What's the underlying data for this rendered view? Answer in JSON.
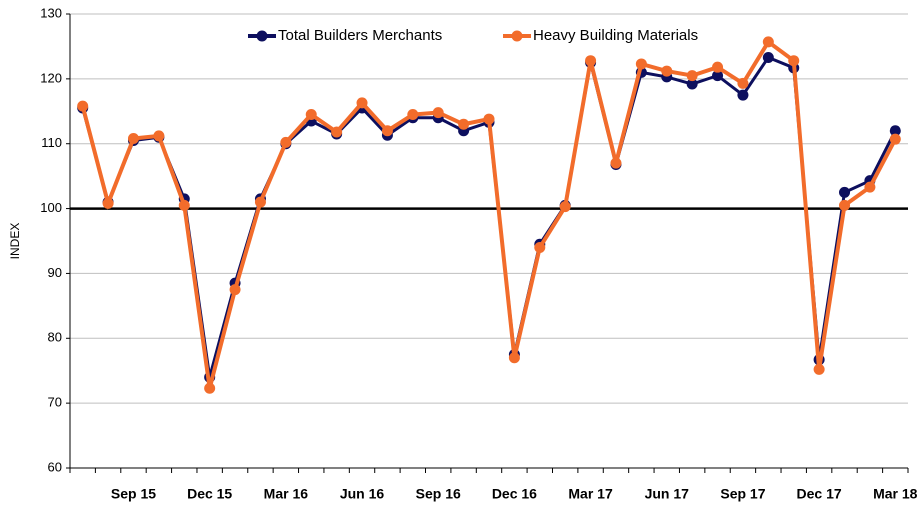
{
  "chart_data": {
    "type": "line",
    "y_label": "INDEX",
    "categories": [
      null,
      null,
      "Sep 15",
      null,
      null,
      "Dec 15",
      null,
      null,
      "Mar 16",
      null,
      null,
      "Jun 16",
      null,
      null,
      "Sep 16",
      null,
      null,
      "Dec 16",
      null,
      null,
      "Mar 17",
      null,
      null,
      "Jun 17",
      null,
      null,
      "Sep 17",
      null,
      null,
      "Dec 17",
      null,
      null,
      "Mar 18"
    ],
    "series": [
      {
        "name": "Total Builders Merchants",
        "color": "#0d0f5e",
        "values": [
          115.5,
          101,
          110.5,
          111,
          101.5,
          74,
          88.5,
          101.5,
          110,
          113.5,
          111.5,
          115.5,
          111.3,
          114,
          114,
          112,
          113.3,
          77.5,
          94.5,
          100.5,
          122.5,
          106.8,
          121,
          120.3,
          119.2,
          120.5,
          117.5,
          123.3,
          121.7,
          76.7,
          102.5,
          104.3,
          112
        ]
      },
      {
        "name": "Heavy Building Materials",
        "color": "#f26c2b",
        "values": [
          115.8,
          100.8,
          110.8,
          111.2,
          100.5,
          72.3,
          87.5,
          101,
          110.2,
          114.5,
          111.8,
          116.3,
          112,
          114.5,
          114.8,
          113,
          113.8,
          77,
          94,
          100.3,
          122.8,
          107,
          122.3,
          121.2,
          120.5,
          121.8,
          119.3,
          125.7,
          122.8,
          75.2,
          100.5,
          103.3,
          110.7
        ]
      }
    ],
    "ylim": [
      60,
      130
    ],
    "yticks": [
      60,
      70,
      80,
      90,
      100,
      110,
      120,
      130
    ],
    "reference_line": 100,
    "grid": true,
    "legend": "top"
  }
}
